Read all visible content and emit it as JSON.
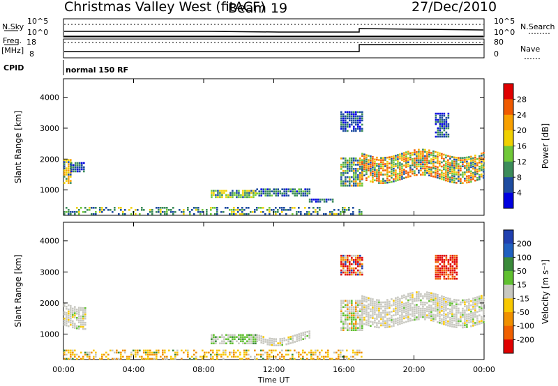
{
  "header": {
    "station": "Christmas Valley West (fitACF)",
    "beam": "Beam 19",
    "date": "27/Dec/2010"
  },
  "strip_labels": {
    "nsky": "N.Sky",
    "nsky_ticks": [
      "10^5",
      "10^0"
    ],
    "nsearch": "N.Search",
    "nsearch_ticks": [
      "10^5",
      "10^0"
    ],
    "freq": "Freq.",
    "freq_unit": "[MHz]",
    "freq_ticks": [
      "18",
      "8"
    ],
    "nave": "Nave",
    "nave_ticks": [
      "80",
      "0"
    ],
    "cpid": "CPID",
    "cpid_value": "normal 150 RF"
  },
  "chart_data": [
    {
      "type": "heatmap",
      "name": "power",
      "ylabel": "Slant Range [km]",
      "yticks": [
        1000,
        2000,
        3000,
        4000
      ],
      "ylim": [
        180,
        4600
      ],
      "xlabel": "",
      "xticks": [
        "00:00",
        "04:00",
        "08:00",
        "12:00",
        "16:00",
        "20:00",
        "00:00"
      ],
      "xlim_hours": [
        0,
        24
      ],
      "colorbar": {
        "label": "Power [dB]",
        "ticks": [
          "28",
          "24",
          "20",
          "16",
          "12",
          "8",
          "4"
        ],
        "colors": [
          "#e00000",
          "#f05a00",
          "#f8a000",
          "#f0d000",
          "#70c838",
          "#3c8c5a",
          "#1e4ca0",
          "#0000e0"
        ]
      },
      "regions": [
        {
          "t": [
            0.0,
            0.4
          ],
          "r": [
            1200,
            2000
          ],
          "level": "mid-high"
        },
        {
          "t": [
            0.4,
            1.2
          ],
          "r": [
            1600,
            1900
          ],
          "level": "low"
        },
        {
          "t": [
            8.4,
            11.0
          ],
          "r": [
            760,
            1000
          ],
          "level": "mid"
        },
        {
          "t": [
            11.0,
            14.0
          ],
          "r": [
            790,
            1050
          ],
          "level": "low-mid"
        },
        {
          "t": [
            14.0,
            15.4
          ],
          "r": [
            600,
            720
          ],
          "level": "low"
        },
        {
          "t": [
            15.8,
            17.0
          ],
          "r": [
            1150,
            2050
          ],
          "level": "mixed"
        },
        {
          "t": [
            15.8,
            17.0
          ],
          "r": [
            2900,
            3550
          ],
          "level": "low"
        },
        {
          "t": [
            17.0,
            24.0
          ],
          "r": [
            1350,
            2200
          ],
          "level": "high"
        },
        {
          "t": [
            21.2,
            22.0
          ],
          "r": [
            2700,
            3500
          ],
          "level": "low"
        },
        {
          "t": [
            0.0,
            17.0
          ],
          "r": [
            200,
            450
          ],
          "level": "low-ground"
        }
      ]
    },
    {
      "type": "heatmap",
      "name": "velocity",
      "ylabel": "Slant Range [km]",
      "yticks": [
        1000,
        2000,
        3000,
        4000
      ],
      "ylim": [
        180,
        4600
      ],
      "xlabel": "Time UT",
      "xticks": [
        "00:00",
        "04:00",
        "08:00",
        "12:00",
        "16:00",
        "20:00",
        "00:00"
      ],
      "xlim_hours": [
        0,
        24
      ],
      "colorbar": {
        "label": "Velocity [m s⁻¹]",
        "ticks": [
          "200",
          "100",
          "50",
          "15",
          "-15",
          "-50",
          "-100",
          "-200"
        ],
        "colors": [
          "#2040b0",
          "#2060c0",
          "#3a8a3a",
          "#60c030",
          "#c8c8c0",
          "#f8c800",
          "#f09000",
          "#f06000",
          "#e00000"
        ]
      },
      "regions": [
        {
          "t": [
            0.0,
            1.2
          ],
          "r": [
            1300,
            2000
          ],
          "level": "grey"
        },
        {
          "t": [
            8.4,
            11.0
          ],
          "r": [
            700,
            1000
          ],
          "level": "green-grey"
        },
        {
          "t": [
            11.0,
            14.0
          ],
          "r": [
            740,
            1000
          ],
          "level": "grey"
        },
        {
          "t": [
            15.8,
            17.0
          ],
          "r": [
            1100,
            2100
          ],
          "level": "grey-green"
        },
        {
          "t": [
            15.8,
            17.0
          ],
          "r": [
            2900,
            3550
          ],
          "level": "red-orange"
        },
        {
          "t": [
            17.0,
            24.0
          ],
          "r": [
            1350,
            2250
          ],
          "level": "grey"
        },
        {
          "t": [
            21.2,
            22.4
          ],
          "r": [
            2800,
            3550
          ],
          "level": "red"
        },
        {
          "t": [
            0.0,
            17.0
          ],
          "r": [
            200,
            500
          ],
          "level": "orange-ground"
        }
      ]
    }
  ]
}
